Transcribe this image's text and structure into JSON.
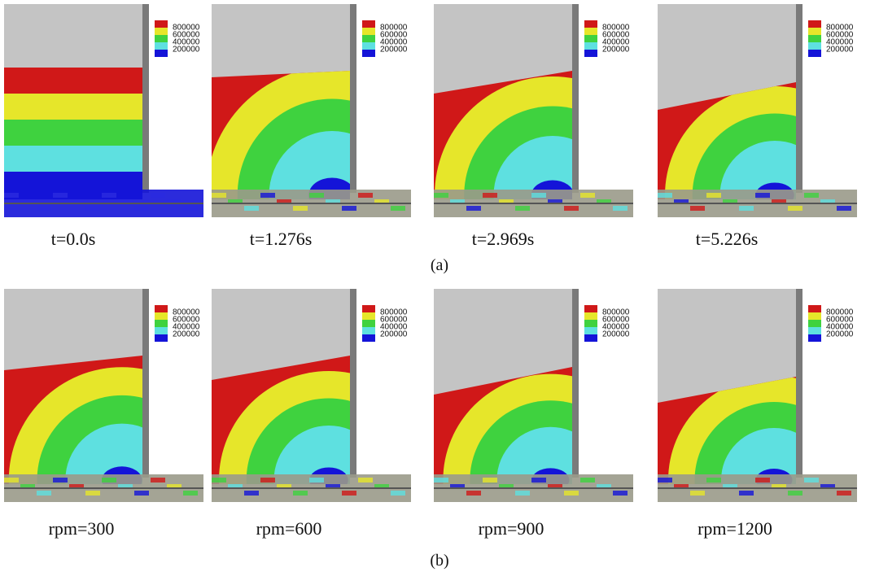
{
  "legend": [
    "800000",
    "600000",
    "400000",
    "200000"
  ],
  "rows": [
    {
      "label": "(a)",
      "panels": [
        {
          "caption": "t=0.0s"
        },
        {
          "caption": "t=1.276s"
        },
        {
          "caption": "t=2.969s"
        },
        {
          "caption": "t=5.226s"
        }
      ]
    },
    {
      "label": "(b)",
      "panels": [
        {
          "caption": "rpm=300"
        },
        {
          "caption": "rpm=600"
        },
        {
          "caption": "rpm=900"
        },
        {
          "caption": "rpm=1200"
        }
      ]
    }
  ]
}
